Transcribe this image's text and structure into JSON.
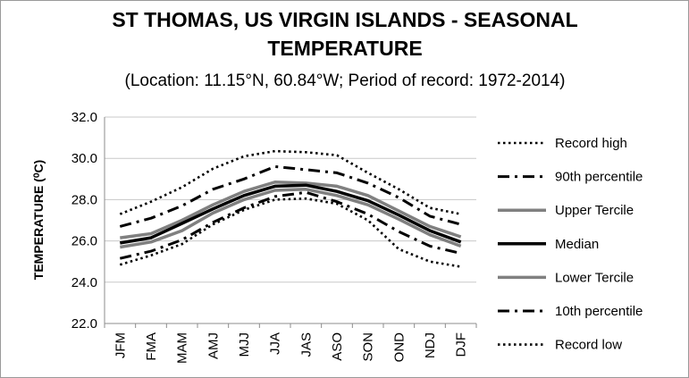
{
  "chart_data": {
    "type": "line",
    "title_line1": "ST THOMAS, US VIRGIN ISLANDS - SEASONAL",
    "title_line2": "TEMPERATURE",
    "subtitle": "(Location: 11.15°N, 60.84°W; Period of record: 1972-2014)",
    "ylabel": "TEMPERATURE (⁰C)",
    "xlabel": "",
    "categories": [
      "JFM",
      "FMA",
      "MAM",
      "AMJ",
      "MJJ",
      "JJA",
      "JAS",
      "ASO",
      "SON",
      "OND",
      "NDJ",
      "DJF"
    ],
    "ylim": [
      22.0,
      32.0
    ],
    "yticks": [
      "22.0",
      "24.0",
      "26.0",
      "28.0",
      "30.0",
      "32.0"
    ],
    "grid": true,
    "legend_position": "right",
    "series": [
      {
        "name": "Record high",
        "style": "dotted",
        "color": "#000000",
        "values": [
          27.3,
          27.9,
          28.6,
          29.5,
          30.1,
          30.35,
          30.3,
          30.15,
          29.3,
          28.5,
          27.6,
          27.3
        ]
      },
      {
        "name": "90th percentile",
        "style": "dashdot",
        "color": "#000000",
        "values": [
          26.7,
          27.1,
          27.7,
          28.5,
          29.0,
          29.6,
          29.45,
          29.3,
          28.8,
          28.1,
          27.2,
          26.8
        ]
      },
      {
        "name": "Upper Tercile",
        "style": "solid-gray",
        "color": "#808080",
        "values": [
          26.15,
          26.35,
          27.0,
          27.75,
          28.4,
          28.85,
          28.8,
          28.65,
          28.2,
          27.45,
          26.7,
          26.2
        ]
      },
      {
        "name": "Median",
        "style": "solid-black",
        "color": "#000000",
        "values": [
          25.9,
          26.15,
          26.85,
          27.55,
          28.2,
          28.65,
          28.7,
          28.4,
          27.95,
          27.25,
          26.5,
          25.95
        ]
      },
      {
        "name": "Lower Tercile",
        "style": "solid-gray",
        "color": "#808080",
        "values": [
          25.7,
          25.95,
          26.5,
          27.35,
          28.0,
          28.45,
          28.5,
          28.2,
          27.75,
          27.05,
          26.3,
          25.75
        ]
      },
      {
        "name": "10th percentile",
        "style": "dashdot",
        "color": "#000000",
        "values": [
          25.15,
          25.5,
          26.05,
          26.9,
          27.6,
          28.15,
          28.35,
          27.9,
          27.3,
          26.45,
          25.75,
          25.4
        ]
      },
      {
        "name": "Record low",
        "style": "dotted",
        "color": "#000000",
        "values": [
          24.85,
          25.3,
          25.85,
          26.8,
          27.5,
          28.0,
          28.05,
          27.8,
          27.0,
          25.6,
          25.0,
          24.75
        ]
      }
    ]
  }
}
